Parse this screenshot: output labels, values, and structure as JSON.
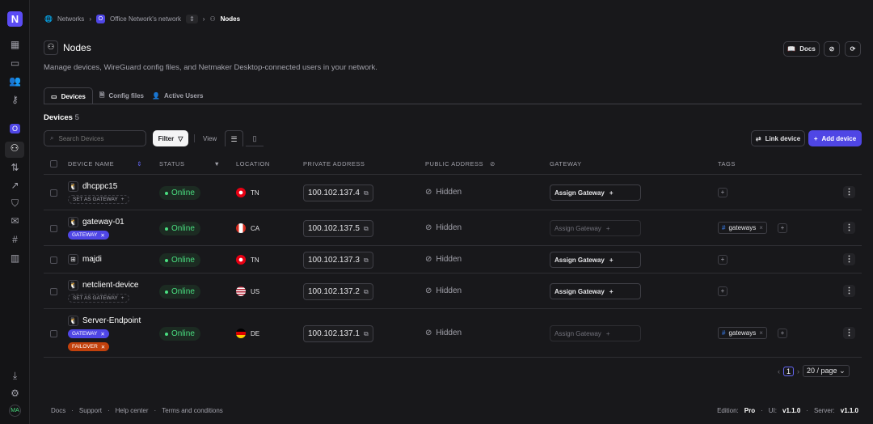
{
  "sidebar": {
    "logo": "N",
    "network_badge": "O",
    "user_initials": "MA"
  },
  "breadcrumb": {
    "networks": "Networks",
    "network_badge": "O",
    "network": "Office Network's network",
    "current": "Nodes"
  },
  "header": {
    "title": "Nodes",
    "description": "Manage devices, WireGuard config files, and Netmaker Desktop-connected users in your network.",
    "docs_label": "Docs"
  },
  "tabs": [
    {
      "label": "Devices",
      "active": true
    },
    {
      "label": "Config files"
    },
    {
      "label": "Active Users"
    }
  ],
  "devices": {
    "heading": "Devices",
    "count": "5",
    "search_placeholder": "Search Devices",
    "filter_label": "Filter",
    "view_label": "View",
    "link_device": "Link device",
    "add_device": "Add device"
  },
  "columns": [
    "DEVICE NAME",
    "STATUS",
    "LOCATION",
    "PRIVATE ADDRESS",
    "PUBLIC ADDRESS",
    "GATEWAY",
    "TAGS"
  ],
  "rows": [
    {
      "name": "dhcppc15",
      "os": "linux",
      "badges": [
        {
          "label": "SET AS GATEWAY",
          "type": "set"
        }
      ],
      "status": "Online",
      "country": "TN",
      "private": "100.102.137.4",
      "public": "Hidden",
      "gateway": "Assign Gateway",
      "gateway_enabled": true,
      "tags": []
    },
    {
      "name": "gateway-01",
      "os": "linux",
      "badges": [
        {
          "label": "GATEWAY",
          "type": "gateway"
        }
      ],
      "status": "Online",
      "country": "CA",
      "private": "100.102.137.5",
      "public": "Hidden",
      "gateway": "Assign Gateway",
      "gateway_enabled": false,
      "tags": [
        "gateways"
      ]
    },
    {
      "name": "majdi",
      "os": "windows",
      "badges": [],
      "status": "Online",
      "country": "TN",
      "private": "100.102.137.3",
      "public": "Hidden",
      "gateway": "Assign Gateway",
      "gateway_enabled": true,
      "tags": []
    },
    {
      "name": "netclient-device",
      "os": "linux",
      "badges": [
        {
          "label": "SET AS GATEWAY",
          "type": "set"
        }
      ],
      "status": "Online",
      "country": "US",
      "private": "100.102.137.2",
      "public": "Hidden",
      "gateway": "Assign Gateway",
      "gateway_enabled": true,
      "tags": []
    },
    {
      "name": "Server-Endpoint",
      "os": "linux",
      "badges": [
        {
          "label": "GATEWAY",
          "type": "gateway"
        },
        {
          "label": "FAILOVER",
          "type": "failover"
        }
      ],
      "status": "Online",
      "country": "DE",
      "private": "100.102.137.1",
      "public": "Hidden",
      "gateway": "Assign Gateway",
      "gateway_enabled": false,
      "tags": [
        "gateways"
      ]
    }
  ],
  "pagination": {
    "page": "1",
    "page_size": "20 / page"
  },
  "footer": {
    "links": [
      "Docs",
      "Support",
      "Help center",
      "Terms and conditions"
    ],
    "edition_label": "Edition:",
    "edition": "Pro",
    "ui_label": "UI:",
    "ui_version": "v1.1.0",
    "server_label": "Server:",
    "server_version": "v1.1.0"
  },
  "colors": {
    "accent": "#4f46e5",
    "online": "#4ade80",
    "failover": "#c2410c",
    "background": "#18181b"
  }
}
